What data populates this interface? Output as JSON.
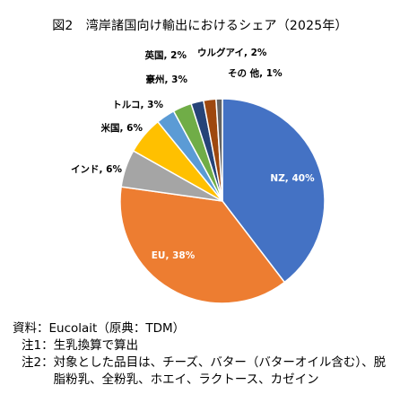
{
  "chart_data": {
    "type": "pie",
    "title": "図2　湾岸諸国向け輸出におけるシェア（2025年）",
    "slices": [
      {
        "label": "NZ",
        "value": 40,
        "text": "NZ, 40%",
        "color": "#4472c4"
      },
      {
        "label": "EU",
        "value": 38,
        "text": "EU, 38%",
        "color": "#ed7d31"
      },
      {
        "label": "インド",
        "value": 6,
        "text": "インド, 6%",
        "color": "#a5a5a5"
      },
      {
        "label": "米国",
        "value": 6,
        "text": "米国, 6%",
        "color": "#ffc000"
      },
      {
        "label": "トルコ",
        "value": 3,
        "text": "トルコ, 3%",
        "color": "#5b9bd5"
      },
      {
        "label": "豪州",
        "value": 3,
        "text": "豪州, 3%",
        "color": "#70ad47"
      },
      {
        "label": "英国",
        "value": 2,
        "text": "英国, 2%",
        "color": "#264478"
      },
      {
        "label": "ウルグアイ",
        "value": 2,
        "text": "ウルグアイ, 2%",
        "color": "#9e480e"
      },
      {
        "label": "その他",
        "value": 1,
        "text": "その 他, 1%",
        "color": "#636363"
      }
    ],
    "legend": "none"
  },
  "notes": [
    {
      "key": "資料：",
      "text": "Eucolait（原典：TDM）"
    },
    {
      "key": "注1：",
      "text": "生乳換算で算出"
    },
    {
      "key": "注2：",
      "text": "対象とした品目は、チーズ、バター（バターオイル含む）、脱脂粉乳、全粉乳、ホエイ、ラクトース、カゼイン"
    }
  ]
}
